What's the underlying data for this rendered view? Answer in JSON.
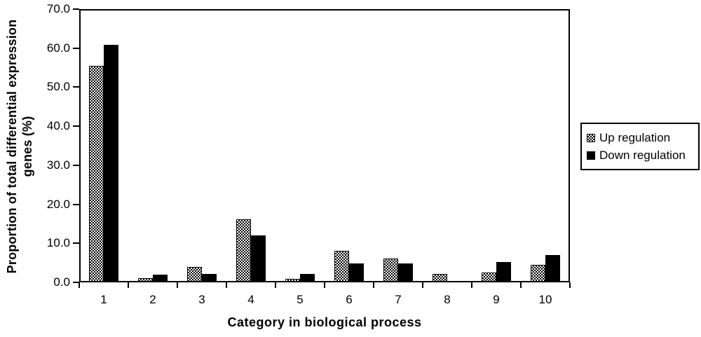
{
  "chart_data": {
    "type": "bar",
    "title": "",
    "xlabel": "Category in biological process",
    "ylabel_line1": "Proportion of total differential expression",
    "ylabel_line2": "genes (%)",
    "categories": [
      "1",
      "2",
      "3",
      "4",
      "5",
      "6",
      "7",
      "8",
      "9",
      "10"
    ],
    "series": [
      {
        "name": "Up regulation",
        "style": "hatched",
        "values": [
          55.4,
          1.0,
          4.0,
          16.1,
          0.9,
          8.1,
          6.1,
          2.2,
          2.5,
          4.5
        ]
      },
      {
        "name": "Down regulation",
        "style": "solid",
        "values": [
          60.8,
          2.0,
          2.2,
          12.1,
          2.1,
          4.8,
          4.8,
          0.3,
          5.2,
          7.0
        ]
      }
    ],
    "ylim": [
      0,
      70
    ],
    "yticks": [
      "0.0",
      "10.0",
      "20.0",
      "30.0",
      "40.0",
      "50.0",
      "60.0",
      "70.0"
    ],
    "grid": false,
    "legend_position": "right-outside"
  },
  "colors": {
    "axis": "#000000",
    "bar_solid": "#000000",
    "background": "#ffffff"
  }
}
